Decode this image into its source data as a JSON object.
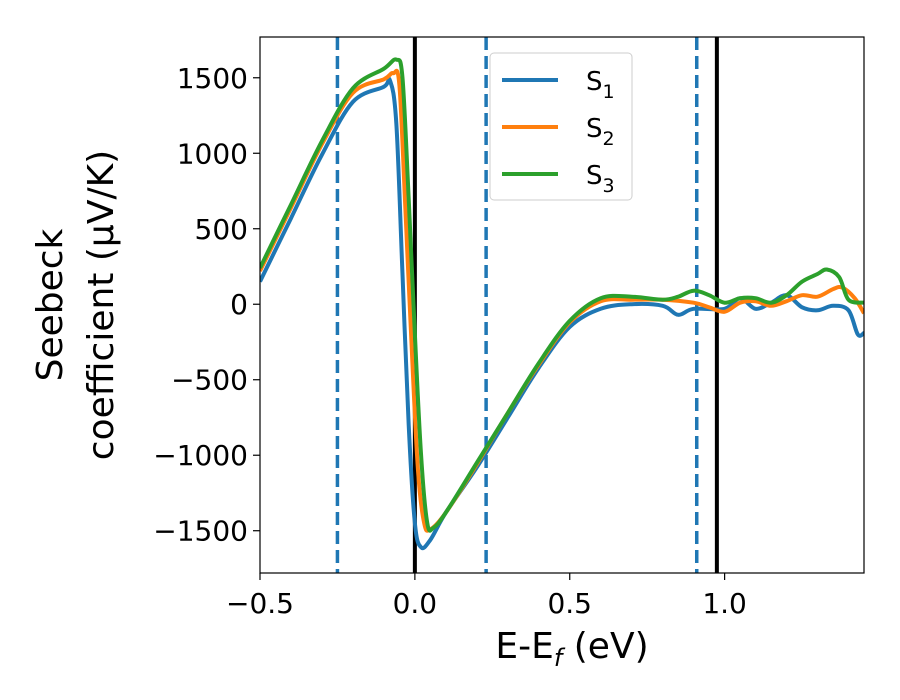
{
  "chart_data": {
    "type": "line",
    "xlabel": "E-E$_f$ (eV)",
    "xlabel_main": "E-E",
    "xlabel_sub": "f",
    "xlabel_tail": " (eV)",
    "ylabel_line1": "Seebeck",
    "ylabel_line2": "coefficient  (μV/K)",
    "xlim": [
      -0.5,
      1.45
    ],
    "ylim": [
      -1780,
      1770
    ],
    "xticks": [
      -0.5,
      0.0,
      0.5,
      1.0
    ],
    "xtick_labels": [
      "−0.5",
      "0.0",
      "0.5",
      "1.0"
    ],
    "yticks": [
      -1500,
      -1000,
      -500,
      0,
      500,
      1000,
      1500
    ],
    "ytick_labels": [
      "−1500",
      "−1000",
      "−500",
      "0",
      "500",
      "1000",
      "1500"
    ],
    "legend_position": "top-center",
    "grid": false,
    "vlines": [
      {
        "x": -0.25,
        "style": "dashed",
        "color": "#1f77b4"
      },
      {
        "x": 0.0,
        "style": "solid",
        "color": "#000000"
      },
      {
        "x": 0.23,
        "style": "dashed",
        "color": "#1f77b4"
      },
      {
        "x": 0.91,
        "style": "dashed",
        "color": "#1f77b4"
      },
      {
        "x": 0.975,
        "style": "solid",
        "color": "#000000"
      }
    ],
    "series": [
      {
        "name": "S",
        "subscript": "1",
        "color": "#1f77b4",
        "points": [
          [
            -0.5,
            150
          ],
          [
            -0.4,
            570
          ],
          [
            -0.3,
            990
          ],
          [
            -0.2,
            1340
          ],
          [
            -0.1,
            1440
          ],
          [
            -0.08,
            1480
          ],
          [
            -0.06,
            1200
          ],
          [
            -0.04,
            200
          ],
          [
            -0.02,
            -800
          ],
          [
            0.0,
            -1450
          ],
          [
            0.02,
            -1610
          ],
          [
            0.05,
            -1560
          ],
          [
            0.1,
            -1380
          ],
          [
            0.2,
            -1080
          ],
          [
            0.3,
            -750
          ],
          [
            0.4,
            -420
          ],
          [
            0.5,
            -150
          ],
          [
            0.6,
            -30
          ],
          [
            0.7,
            0
          ],
          [
            0.8,
            -10
          ],
          [
            0.85,
            -70
          ],
          [
            0.9,
            -30
          ],
          [
            1.0,
            -30
          ],
          [
            1.05,
            40
          ],
          [
            1.1,
            -30
          ],
          [
            1.15,
            10
          ],
          [
            1.2,
            60
          ],
          [
            1.25,
            -20
          ],
          [
            1.3,
            -40
          ],
          [
            1.35,
            -10
          ],
          [
            1.4,
            -40
          ],
          [
            1.43,
            -200
          ],
          [
            1.45,
            -190
          ]
        ]
      },
      {
        "name": "S",
        "subscript": "2",
        "color": "#ff7f0e",
        "points": [
          [
            -0.5,
            220
          ],
          [
            -0.4,
            640
          ],
          [
            -0.3,
            1060
          ],
          [
            -0.2,
            1400
          ],
          [
            -0.1,
            1490
          ],
          [
            -0.07,
            1530
          ],
          [
            -0.05,
            1450
          ],
          [
            -0.03,
            600
          ],
          [
            -0.01,
            -300
          ],
          [
            0.01,
            -1100
          ],
          [
            0.03,
            -1450
          ],
          [
            0.05,
            -1490
          ],
          [
            0.1,
            -1380
          ],
          [
            0.2,
            -1060
          ],
          [
            0.3,
            -720
          ],
          [
            0.4,
            -400
          ],
          [
            0.5,
            -120
          ],
          [
            0.6,
            20
          ],
          [
            0.7,
            30
          ],
          [
            0.8,
            30
          ],
          [
            0.9,
            10
          ],
          [
            0.95,
            -20
          ],
          [
            1.0,
            -50
          ],
          [
            1.05,
            10
          ],
          [
            1.1,
            20
          ],
          [
            1.15,
            -10
          ],
          [
            1.2,
            20
          ],
          [
            1.25,
            60
          ],
          [
            1.3,
            50
          ],
          [
            1.35,
            100
          ],
          [
            1.38,
            110
          ],
          [
            1.42,
            40
          ],
          [
            1.45,
            -60
          ]
        ]
      },
      {
        "name": "S",
        "subscript": "3",
        "color": "#2ca02c",
        "points": [
          [
            -0.5,
            240
          ],
          [
            -0.4,
            660
          ],
          [
            -0.3,
            1080
          ],
          [
            -0.2,
            1430
          ],
          [
            -0.1,
            1560
          ],
          [
            -0.06,
            1620
          ],
          [
            -0.04,
            1500
          ],
          [
            -0.02,
            700
          ],
          [
            0.0,
            -200
          ],
          [
            0.02,
            -1000
          ],
          [
            0.04,
            -1450
          ],
          [
            0.06,
            -1480
          ],
          [
            0.1,
            -1380
          ],
          [
            0.2,
            -1050
          ],
          [
            0.3,
            -720
          ],
          [
            0.4,
            -390
          ],
          [
            0.5,
            -110
          ],
          [
            0.6,
            40
          ],
          [
            0.7,
            50
          ],
          [
            0.8,
            30
          ],
          [
            0.85,
            50
          ],
          [
            0.9,
            90
          ],
          [
            0.95,
            60
          ],
          [
            1.0,
            10
          ],
          [
            1.05,
            40
          ],
          [
            1.1,
            40
          ],
          [
            1.15,
            10
          ],
          [
            1.2,
            60
          ],
          [
            1.25,
            150
          ],
          [
            1.3,
            200
          ],
          [
            1.33,
            230
          ],
          [
            1.37,
            180
          ],
          [
            1.4,
            30
          ],
          [
            1.45,
            10
          ]
        ]
      }
    ]
  }
}
